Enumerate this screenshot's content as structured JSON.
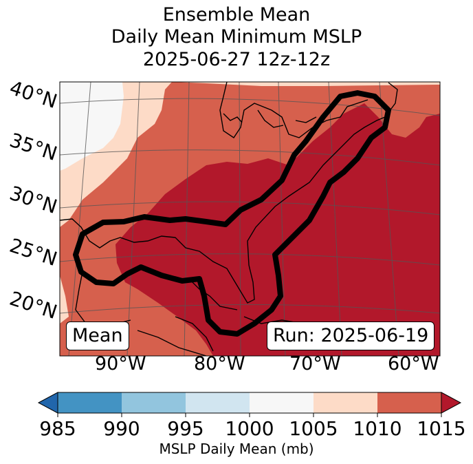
{
  "title": {
    "line1": "Ensemble Mean",
    "line2": "Daily Mean Minimum MSLP",
    "line3": "2025-06-27 12z-12z"
  },
  "lat_labels": [
    "40°N",
    "35°N",
    "30°N",
    "25°N",
    "20°N"
  ],
  "lon_labels": [
    "90°W",
    "80°W",
    "70°W",
    "60°W"
  ],
  "badges": {
    "left": "Mean",
    "right": "Run: 2025-06-19"
  },
  "colorbar": {
    "ticks": [
      "985",
      "990",
      "995",
      "1000",
      "1005",
      "1010",
      "1015"
    ],
    "label": "MSLP Daily Mean (mb)",
    "colors": {
      "below": "#2166ac",
      "b985_990": "#4393c3",
      "b990_995": "#92c5de",
      "b995_1000": "#d1e5f0",
      "b1000_1005": "#f7f7f7",
      "b1005_1010": "#fddbc7",
      "b1010_1015": "#d6604d",
      "above": "#b2182b"
    }
  },
  "map_colors": {
    "gt1015": "#b2182b",
    "r1010_1015": "#d6604d",
    "r1005_1010": "#fddbc7",
    "r1000_1005": "#f7f7f7",
    "coast": "#000000",
    "contour": "#000000"
  }
}
